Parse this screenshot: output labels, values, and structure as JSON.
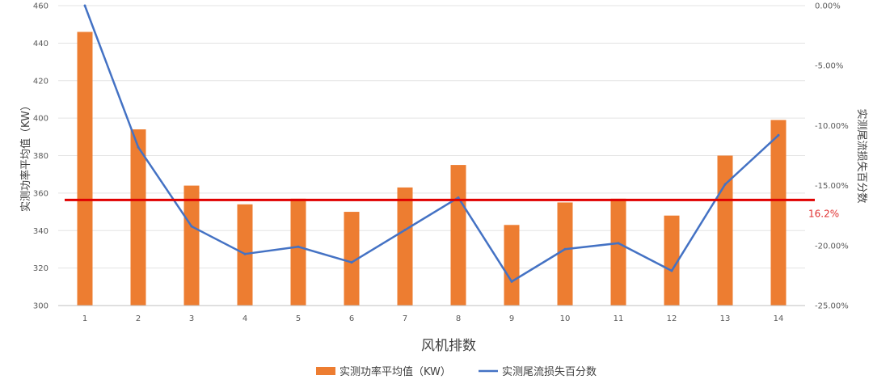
{
  "chart_data": {
    "type": "bar",
    "categories": [
      "1",
      "2",
      "3",
      "4",
      "5",
      "6",
      "7",
      "8",
      "9",
      "10",
      "11",
      "12",
      "13",
      "14"
    ],
    "series": [
      {
        "name": "实测功率平均值（KW）",
        "kind": "bar",
        "axis": "left",
        "color": "#ed7d31",
        "values": [
          446,
          394,
          364,
          354,
          357,
          350,
          363,
          375,
          343,
          355,
          357,
          348,
          380,
          399
        ]
      },
      {
        "name": "实测尾流损失百分数",
        "kind": "line",
        "axis": "right",
        "color": "#4472c4",
        "values": [
          0.0,
          -11.8,
          -18.4,
          -20.7,
          -20.1,
          -21.4,
          -18.7,
          -16.0,
          -23.0,
          -20.3,
          -19.8,
          -22.1,
          -14.9,
          -10.8
        ]
      }
    ],
    "xlabel": "风机排数",
    "ylabel": "实测功率平均值（KW）",
    "y2label": "实测尾流损失百分数",
    "ylim": [
      300,
      460
    ],
    "yticks": [
      "300",
      "320",
      "340",
      "360",
      "380",
      "400",
      "420",
      "440",
      "460"
    ],
    "y2lim": [
      -25,
      0
    ],
    "y2ticks": [
      "0.00%",
      "-5.00%",
      "-10.00%",
      "-15.00%",
      "-20.00%",
      "-25.00%"
    ],
    "reference_line": {
      "value_percent": -16.2,
      "label": "16.2%",
      "color": "#e00000"
    },
    "grid": true,
    "legend": "bottom"
  }
}
